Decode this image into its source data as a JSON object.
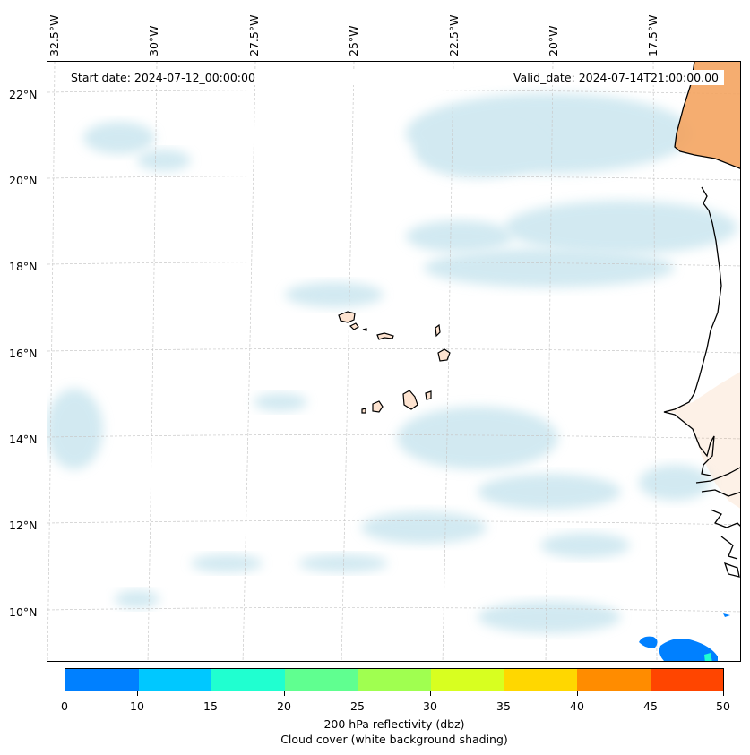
{
  "map": {
    "start_date": "Start date: 2024-07-12_00:00:00",
    "valid_date": "Valid_date: 2024-07-14T21:00:00.00",
    "lon_labels": [
      "32.5°W",
      "30°W",
      "27.5°W",
      "25°W",
      "22.5°W",
      "20°W",
      "17.5°W"
    ],
    "lat_labels": [
      "22°N",
      "20°N",
      "18°N",
      "16°N",
      "14°N",
      "12°N",
      "10°N"
    ],
    "land_color": "#f4a460",
    "coast_color": "#000000",
    "cloud_color": "#add8e6"
  },
  "colorbar": {
    "ticks": [
      "0",
      "10",
      "15",
      "20",
      "25",
      "30",
      "35",
      "40",
      "45",
      "50"
    ],
    "colors": [
      "#0080ff",
      "#00c8ff",
      "#20ffd0",
      "#60ff90",
      "#a0ff50",
      "#d8ff20",
      "#ffd700",
      "#ff8c00",
      "#ff4500"
    ],
    "title_line1": "200 hPa reflectivity (dbz)",
    "title_line2": "Cloud cover (white background shading)"
  }
}
